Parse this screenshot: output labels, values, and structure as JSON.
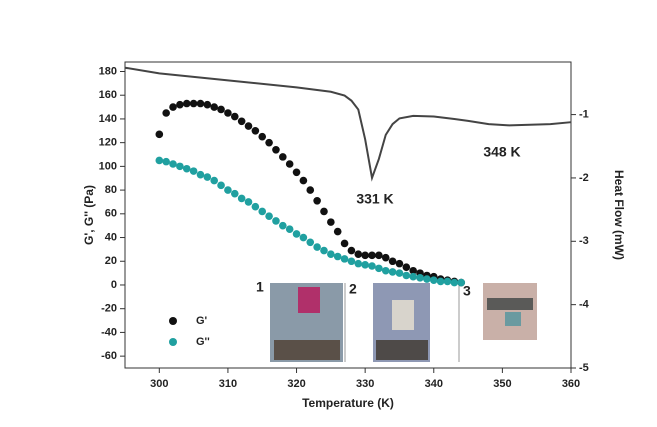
{
  "chart_data": {
    "type": "scatter",
    "x_label": "Temperature (K)",
    "y_label": "G', G'' (Pa)",
    "y2_label": "Heat Flow (mW)",
    "xlim": [
      295,
      360
    ],
    "xticks": [
      300,
      310,
      320,
      330,
      340,
      350,
      360
    ],
    "ylim": [
      -70,
      188
    ],
    "yticks": [
      180,
      160,
      140,
      120,
      100,
      80,
      60,
      40,
      20,
      0,
      -20,
      -40,
      -60
    ],
    "y2lim": [
      -5,
      -0.17
    ],
    "y2ticks": [
      -1,
      -2,
      -3,
      -4,
      -5
    ],
    "annotations": [
      "331 K",
      "348 K"
    ],
    "inset_labels": [
      "1",
      "2",
      "3"
    ],
    "series": [
      {
        "name": "G'",
        "color": "#111111",
        "x": [
          300,
          301,
          302,
          303,
          304,
          305,
          306,
          307,
          308,
          309,
          310,
          311,
          312,
          313,
          314,
          315,
          316,
          317,
          318,
          319,
          320,
          321,
          322,
          323,
          324,
          325,
          326,
          327,
          328,
          329,
          330,
          331,
          332,
          333,
          334,
          335,
          336,
          337,
          338,
          339,
          340,
          341,
          342,
          343,
          344
        ],
        "values": [
          127,
          145,
          150,
          152,
          153,
          153,
          153,
          152,
          150,
          148,
          145,
          142,
          138,
          134,
          130,
          125,
          120,
          114,
          108,
          102,
          95,
          88,
          80,
          71,
          62,
          53,
          45,
          35,
          29,
          26,
          25,
          25,
          25,
          23,
          20,
          18,
          15,
          12,
          10,
          8,
          7,
          5,
          4,
          3,
          2
        ]
      },
      {
        "name": "G''",
        "color": "#20a0a0",
        "x": [
          300,
          301,
          302,
          303,
          304,
          305,
          306,
          307,
          308,
          309,
          310,
          311,
          312,
          313,
          314,
          315,
          316,
          317,
          318,
          319,
          320,
          321,
          322,
          323,
          324,
          325,
          326,
          327,
          328,
          329,
          330,
          331,
          332,
          333,
          334,
          335,
          336,
          337,
          338,
          339,
          340,
          341,
          342,
          343,
          344
        ],
        "values": [
          105,
          104,
          102,
          100,
          98,
          96,
          93,
          91,
          88,
          84,
          80,
          77,
          73,
          70,
          66,
          62,
          58,
          54,
          50,
          47,
          43,
          40,
          36,
          32,
          29,
          26,
          24,
          22,
          20,
          18,
          17,
          16,
          14,
          12,
          11,
          10,
          8,
          7,
          6,
          5,
          4,
          3,
          3,
          2,
          2
        ]
      },
      {
        "type": "line",
        "axis": "y2",
        "color": "#444444",
        "x": [
          295,
          300,
          310,
          320,
          325,
          327,
          328,
          329,
          330,
          331,
          332,
          333,
          334,
          335,
          337,
          340,
          343,
          345,
          348,
          351,
          354,
          357,
          360
        ],
        "values": [
          -0.26,
          -0.35,
          -0.46,
          -0.57,
          -0.64,
          -0.7,
          -0.78,
          -0.92,
          -1.39,
          -2.0,
          -1.7,
          -1.32,
          -1.15,
          -1.06,
          -1.02,
          -1.03,
          -1.07,
          -1.1,
          -1.15,
          -1.17,
          -1.16,
          -1.15,
          -1.12
        ]
      }
    ]
  }
}
